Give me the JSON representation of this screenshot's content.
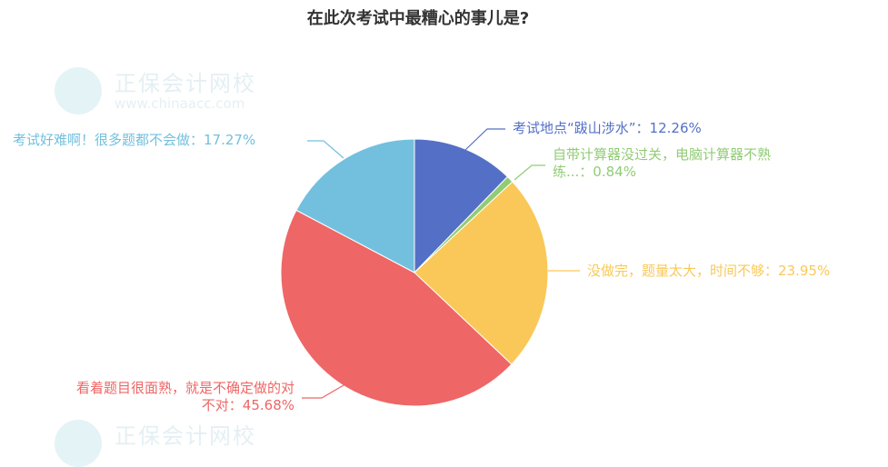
{
  "chart_data": {
    "type": "pie",
    "title": "在此次考试中最糟心的事儿是?",
    "slices": [
      {
        "name": "考试地点“跋山涉水”",
        "value": 12.26,
        "label": "考试地点“跋山涉水”：12.26%",
        "color": "#5470c6"
      },
      {
        "name": "自带计算器没过关，电脑计算器不熟练...",
        "value": 0.84,
        "label_line1": "自带计算器没过关，电脑计算器不熟",
        "label_line2": "练...：0.84%",
        "color": "#91cc75"
      },
      {
        "name": "没做完，题量太大，时间不够",
        "value": 23.95,
        "label": "没做完，题量太大，时间不够：23.95%",
        "color": "#fac858"
      },
      {
        "name": "看着题目很面熟，就是不确定做的对不对",
        "value": 45.68,
        "label_line1": "看着题目很面熟，就是不确定做的对",
        "label_line2": "不对：45.68%",
        "color": "#ee6666"
      },
      {
        "name": "考试好难啊！很多题都不会做",
        "value": 17.27,
        "label": "考试好难啊！很多题都不会做：17.27%",
        "color": "#73c0de"
      }
    ],
    "legend": "none"
  },
  "watermark": {
    "text": "正保会计网校",
    "url": "www.chinaacc.com"
  }
}
